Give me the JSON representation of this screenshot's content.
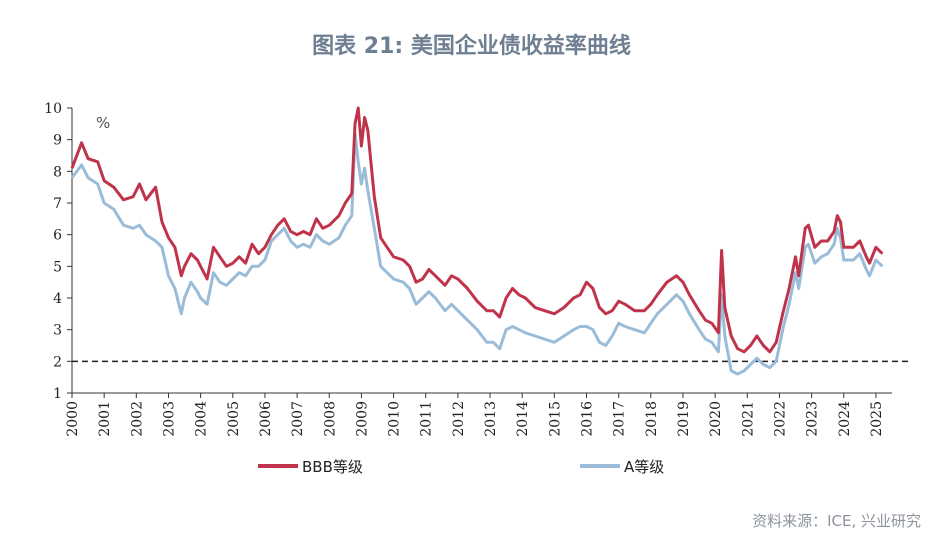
{
  "title": "图表 21: 美国企业债收益率曲线",
  "source": "资料来源：ICE, 兴业研究",
  "chart_data": {
    "type": "line",
    "unit_label": "%",
    "ylim": [
      1,
      10
    ],
    "y_ticks": [
      "1",
      "2",
      "3",
      "4",
      "5",
      "6",
      "7",
      "8",
      "9",
      "10"
    ],
    "xlim": [
      2000,
      2025.2
    ],
    "x_ticks": [
      "2000",
      "2001",
      "2002",
      "2003",
      "2004",
      "2005",
      "2006",
      "2007",
      "2008",
      "2009",
      "2010",
      "2011",
      "2012",
      "2013",
      "2014",
      "2015",
      "2016",
      "2017",
      "2018",
      "2019",
      "2020",
      "2021",
      "2022",
      "2023",
      "2024",
      "2025"
    ],
    "reference_line": {
      "y": 2,
      "style": "dashed"
    },
    "grid": false,
    "legend_position": "bottom",
    "series": [
      {
        "name": "BBB等级",
        "color": "#c0344b",
        "points": [
          [
            2000.0,
            8.1
          ],
          [
            2000.3,
            8.9
          ],
          [
            2000.5,
            8.4
          ],
          [
            2000.8,
            8.3
          ],
          [
            2001.0,
            7.7
          ],
          [
            2001.3,
            7.5
          ],
          [
            2001.6,
            7.1
          ],
          [
            2001.9,
            7.2
          ],
          [
            2002.1,
            7.6
          ],
          [
            2002.3,
            7.1
          ],
          [
            2002.6,
            7.5
          ],
          [
            2002.8,
            6.4
          ],
          [
            2003.0,
            5.9
          ],
          [
            2003.2,
            5.6
          ],
          [
            2003.4,
            4.7
          ],
          [
            2003.5,
            5.0
          ],
          [
            2003.7,
            5.4
          ],
          [
            2003.9,
            5.2
          ],
          [
            2004.0,
            5.0
          ],
          [
            2004.2,
            4.6
          ],
          [
            2004.4,
            5.6
          ],
          [
            2004.6,
            5.3
          ],
          [
            2004.8,
            5.0
          ],
          [
            2005.0,
            5.1
          ],
          [
            2005.2,
            5.3
          ],
          [
            2005.4,
            5.1
          ],
          [
            2005.6,
            5.7
          ],
          [
            2005.8,
            5.4
          ],
          [
            2006.0,
            5.6
          ],
          [
            2006.2,
            6.0
          ],
          [
            2006.4,
            6.3
          ],
          [
            2006.6,
            6.5
          ],
          [
            2006.8,
            6.1
          ],
          [
            2007.0,
            6.0
          ],
          [
            2007.2,
            6.1
          ],
          [
            2007.4,
            6.0
          ],
          [
            2007.6,
            6.5
          ],
          [
            2007.8,
            6.2
          ],
          [
            2008.0,
            6.3
          ],
          [
            2008.3,
            6.6
          ],
          [
            2008.5,
            7.0
          ],
          [
            2008.7,
            7.3
          ],
          [
            2008.8,
            9.5
          ],
          [
            2008.9,
            10.0
          ],
          [
            2009.0,
            8.8
          ],
          [
            2009.1,
            9.7
          ],
          [
            2009.2,
            9.3
          ],
          [
            2009.4,
            7.2
          ],
          [
            2009.6,
            5.9
          ],
          [
            2009.8,
            5.6
          ],
          [
            2010.0,
            5.3
          ],
          [
            2010.3,
            5.2
          ],
          [
            2010.5,
            5.0
          ],
          [
            2010.7,
            4.5
          ],
          [
            2010.9,
            4.6
          ],
          [
            2011.1,
            4.9
          ],
          [
            2011.3,
            4.7
          ],
          [
            2011.6,
            4.4
          ],
          [
            2011.8,
            4.7
          ],
          [
            2012.0,
            4.6
          ],
          [
            2012.3,
            4.3
          ],
          [
            2012.6,
            3.9
          ],
          [
            2012.9,
            3.6
          ],
          [
            2013.1,
            3.6
          ],
          [
            2013.3,
            3.4
          ],
          [
            2013.5,
            4.0
          ],
          [
            2013.7,
            4.3
          ],
          [
            2013.9,
            4.1
          ],
          [
            2014.1,
            4.0
          ],
          [
            2014.4,
            3.7
          ],
          [
            2014.7,
            3.6
          ],
          [
            2015.0,
            3.5
          ],
          [
            2015.3,
            3.7
          ],
          [
            2015.6,
            4.0
          ],
          [
            2015.8,
            4.1
          ],
          [
            2016.0,
            4.5
          ],
          [
            2016.2,
            4.3
          ],
          [
            2016.4,
            3.7
          ],
          [
            2016.6,
            3.5
          ],
          [
            2016.8,
            3.6
          ],
          [
            2017.0,
            3.9
          ],
          [
            2017.2,
            3.8
          ],
          [
            2017.5,
            3.6
          ],
          [
            2017.8,
            3.6
          ],
          [
            2018.0,
            3.8
          ],
          [
            2018.2,
            4.1
          ],
          [
            2018.5,
            4.5
          ],
          [
            2018.8,
            4.7
          ],
          [
            2019.0,
            4.5
          ],
          [
            2019.2,
            4.1
          ],
          [
            2019.5,
            3.6
          ],
          [
            2019.7,
            3.3
          ],
          [
            2019.9,
            3.2
          ],
          [
            2020.1,
            2.9
          ],
          [
            2020.2,
            5.5
          ],
          [
            2020.3,
            3.7
          ],
          [
            2020.5,
            2.8
          ],
          [
            2020.7,
            2.4
          ],
          [
            2020.9,
            2.3
          ],
          [
            2021.1,
            2.5
          ],
          [
            2021.3,
            2.8
          ],
          [
            2021.5,
            2.5
          ],
          [
            2021.7,
            2.3
          ],
          [
            2021.9,
            2.6
          ],
          [
            2022.1,
            3.5
          ],
          [
            2022.3,
            4.3
          ],
          [
            2022.5,
            5.3
          ],
          [
            2022.6,
            4.7
          ],
          [
            2022.8,
            6.2
          ],
          [
            2022.9,
            6.3
          ],
          [
            2023.1,
            5.6
          ],
          [
            2023.3,
            5.8
          ],
          [
            2023.5,
            5.8
          ],
          [
            2023.7,
            6.1
          ],
          [
            2023.8,
            6.6
          ],
          [
            2023.9,
            6.4
          ],
          [
            2024.0,
            5.6
          ],
          [
            2024.3,
            5.6
          ],
          [
            2024.5,
            5.8
          ],
          [
            2024.7,
            5.3
          ],
          [
            2024.8,
            5.1
          ],
          [
            2025.0,
            5.6
          ],
          [
            2025.2,
            5.4
          ]
        ]
      },
      {
        "name": "A等级",
        "color": "#9bbcd9",
        "points": [
          [
            2000.0,
            7.8
          ],
          [
            2000.3,
            8.2
          ],
          [
            2000.5,
            7.8
          ],
          [
            2000.8,
            7.6
          ],
          [
            2001.0,
            7.0
          ],
          [
            2001.3,
            6.8
          ],
          [
            2001.6,
            6.3
          ],
          [
            2001.9,
            6.2
          ],
          [
            2002.1,
            6.3
          ],
          [
            2002.3,
            6.0
          ],
          [
            2002.6,
            5.8
          ],
          [
            2002.8,
            5.6
          ],
          [
            2003.0,
            4.7
          ],
          [
            2003.2,
            4.3
          ],
          [
            2003.4,
            3.5
          ],
          [
            2003.5,
            4.0
          ],
          [
            2003.7,
            4.5
          ],
          [
            2003.9,
            4.2
          ],
          [
            2004.0,
            4.0
          ],
          [
            2004.2,
            3.8
          ],
          [
            2004.4,
            4.8
          ],
          [
            2004.6,
            4.5
          ],
          [
            2004.8,
            4.4
          ],
          [
            2005.0,
            4.6
          ],
          [
            2005.2,
            4.8
          ],
          [
            2005.4,
            4.7
          ],
          [
            2005.6,
            5.0
          ],
          [
            2005.8,
            5.0
          ],
          [
            2006.0,
            5.2
          ],
          [
            2006.2,
            5.8
          ],
          [
            2006.4,
            6.0
          ],
          [
            2006.6,
            6.2
          ],
          [
            2006.8,
            5.8
          ],
          [
            2007.0,
            5.6
          ],
          [
            2007.2,
            5.7
          ],
          [
            2007.4,
            5.6
          ],
          [
            2007.6,
            6.0
          ],
          [
            2007.8,
            5.8
          ],
          [
            2008.0,
            5.7
          ],
          [
            2008.3,
            5.9
          ],
          [
            2008.5,
            6.3
          ],
          [
            2008.7,
            6.6
          ],
          [
            2008.8,
            9.2
          ],
          [
            2008.9,
            8.3
          ],
          [
            2009.0,
            7.6
          ],
          [
            2009.1,
            8.1
          ],
          [
            2009.2,
            7.4
          ],
          [
            2009.4,
            6.2
          ],
          [
            2009.6,
            5.0
          ],
          [
            2009.8,
            4.8
          ],
          [
            2010.0,
            4.6
          ],
          [
            2010.3,
            4.5
          ],
          [
            2010.5,
            4.3
          ],
          [
            2010.7,
            3.8
          ],
          [
            2010.9,
            4.0
          ],
          [
            2011.1,
            4.2
          ],
          [
            2011.3,
            4.0
          ],
          [
            2011.6,
            3.6
          ],
          [
            2011.8,
            3.8
          ],
          [
            2012.0,
            3.6
          ],
          [
            2012.3,
            3.3
          ],
          [
            2012.6,
            3.0
          ],
          [
            2012.9,
            2.6
          ],
          [
            2013.1,
            2.6
          ],
          [
            2013.3,
            2.4
          ],
          [
            2013.5,
            3.0
          ],
          [
            2013.7,
            3.1
          ],
          [
            2013.9,
            3.0
          ],
          [
            2014.1,
            2.9
          ],
          [
            2014.4,
            2.8
          ],
          [
            2014.7,
            2.7
          ],
          [
            2015.0,
            2.6
          ],
          [
            2015.3,
            2.8
          ],
          [
            2015.6,
            3.0
          ],
          [
            2015.8,
            3.1
          ],
          [
            2016.0,
            3.1
          ],
          [
            2016.2,
            3.0
          ],
          [
            2016.4,
            2.6
          ],
          [
            2016.6,
            2.5
          ],
          [
            2016.8,
            2.8
          ],
          [
            2017.0,
            3.2
          ],
          [
            2017.2,
            3.1
          ],
          [
            2017.5,
            3.0
          ],
          [
            2017.8,
            2.9
          ],
          [
            2018.0,
            3.2
          ],
          [
            2018.2,
            3.5
          ],
          [
            2018.5,
            3.8
          ],
          [
            2018.8,
            4.1
          ],
          [
            2019.0,
            3.9
          ],
          [
            2019.2,
            3.5
          ],
          [
            2019.5,
            3.0
          ],
          [
            2019.7,
            2.7
          ],
          [
            2019.9,
            2.6
          ],
          [
            2020.1,
            2.3
          ],
          [
            2020.2,
            4.1
          ],
          [
            2020.3,
            2.8
          ],
          [
            2020.5,
            1.7
          ],
          [
            2020.7,
            1.6
          ],
          [
            2020.9,
            1.7
          ],
          [
            2021.1,
            1.9
          ],
          [
            2021.3,
            2.1
          ],
          [
            2021.5,
            1.9
          ],
          [
            2021.7,
            1.8
          ],
          [
            2021.9,
            2.0
          ],
          [
            2022.1,
            3.0
          ],
          [
            2022.3,
            3.8
          ],
          [
            2022.5,
            4.8
          ],
          [
            2022.6,
            4.3
          ],
          [
            2022.8,
            5.6
          ],
          [
            2022.9,
            5.7
          ],
          [
            2023.1,
            5.1
          ],
          [
            2023.3,
            5.3
          ],
          [
            2023.5,
            5.4
          ],
          [
            2023.7,
            5.7
          ],
          [
            2023.8,
            6.2
          ],
          [
            2023.9,
            5.9
          ],
          [
            2024.0,
            5.2
          ],
          [
            2024.3,
            5.2
          ],
          [
            2024.5,
            5.4
          ],
          [
            2024.7,
            4.9
          ],
          [
            2024.8,
            4.7
          ],
          [
            2025.0,
            5.2
          ],
          [
            2025.2,
            5.0
          ]
        ]
      }
    ]
  }
}
